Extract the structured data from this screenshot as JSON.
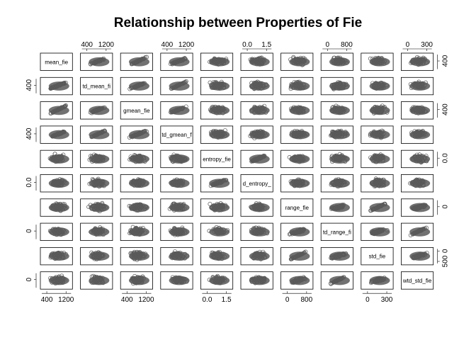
{
  "title": "Relationship between Properties of Fie",
  "chart_data": {
    "type": "scatter",
    "kind": "scatterplot-matrix",
    "title": "Relationship between Properties of Fie",
    "variables": [
      {
        "name": "mean_fie",
        "label": "mean_fie",
        "range": [
          300,
          1350
        ]
      },
      {
        "name": "wtd_mean_fie",
        "label": "td_mean_fi",
        "range": [
          300,
          1250
        ]
      },
      {
        "name": "gmean_fie",
        "label": "gmean_fie",
        "range": [
          250,
          1250
        ]
      },
      {
        "name": "wtd_gmean_fie",
        "label": "td_gmean_f",
        "range": [
          250,
          1200
        ]
      },
      {
        "name": "entropy_fie",
        "label": "entropy_fie",
        "range": [
          0,
          1.7
        ]
      },
      {
        "name": "wtd_entropy_fie",
        "label": "d_entropy_",
        "range": [
          0,
          1.5
        ]
      },
      {
        "name": "range_fie",
        "label": "range_fie",
        "range": [
          0,
          1350
        ]
      },
      {
        "name": "wtd_range_fie",
        "label": "td_range_fi",
        "range": [
          0,
          1150
        ]
      },
      {
        "name": "std_fie",
        "label": "std_fie",
        "range": [
          0,
          600
        ]
      },
      {
        "name": "wtd_std_fie",
        "label": "wtd_std_fie",
        "range": [
          0,
          500
        ]
      }
    ],
    "top_axes": [
      {
        "column": 1,
        "ticks": [
          "400",
          "1200"
        ]
      },
      {
        "column": 3,
        "ticks": [
          "400",
          "1200"
        ]
      },
      {
        "column": 5,
        "ticks": [
          "0.0",
          "1.5"
        ]
      },
      {
        "column": 7,
        "ticks": [
          "0",
          "800"
        ]
      },
      {
        "column": 9,
        "ticks": [
          "0",
          "300"
        ]
      }
    ],
    "bottom_axes": [
      {
        "column": 0,
        "ticks": [
          "400",
          "1200"
        ]
      },
      {
        "column": 2,
        "ticks": [
          "400",
          "1200"
        ]
      },
      {
        "column": 4,
        "ticks": [
          "0.0",
          "1.5"
        ]
      },
      {
        "column": 6,
        "ticks": [
          "0",
          "800"
        ]
      },
      {
        "column": 8,
        "ticks": [
          "0",
          "300"
        ]
      }
    ],
    "left_axes": [
      {
        "row": 1,
        "ticks": [
          "400"
        ]
      },
      {
        "row": 3,
        "ticks": [
          "400"
        ]
      },
      {
        "row": 5,
        "ticks": [
          "0.0"
        ]
      },
      {
        "row": 7,
        "ticks": [
          "0"
        ]
      },
      {
        "row": 9,
        "ticks": [
          "0"
        ]
      }
    ],
    "right_axes": [
      {
        "row": 0,
        "ticks": [
          "400"
        ]
      },
      {
        "row": 2,
        "ticks": [
          "400"
        ]
      },
      {
        "row": 4,
        "ticks": [
          "0.0"
        ]
      },
      {
        "row": 6,
        "ticks": [
          "0"
        ]
      },
      {
        "row": 8,
        "ticks": [
          "0",
          "500"
        ]
      }
    ],
    "grid": false,
    "legend": "none"
  }
}
